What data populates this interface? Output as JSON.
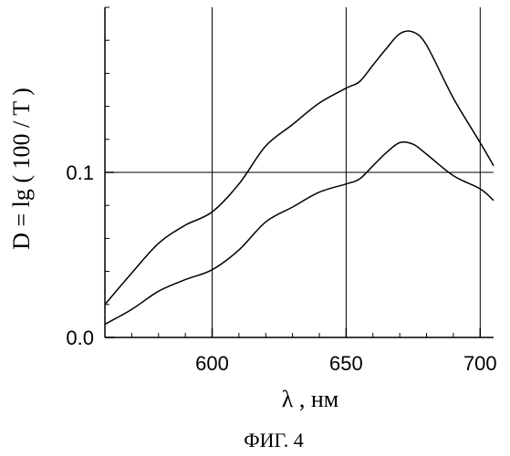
{
  "chart_data": {
    "type": "line",
    "xlabel": "λ , нм",
    "ylabel": "D = lg ( 100 / T )",
    "caption": "ФИГ. 4",
    "xlim": [
      560,
      705
    ],
    "ylim": [
      0,
      0.2
    ],
    "x_ticks": [
      {
        "value": 600,
        "label": "600"
      },
      {
        "value": 650,
        "label": "650"
      },
      {
        "value": 700,
        "label": "700"
      }
    ],
    "y_ticks": [
      {
        "value": 0.0,
        "label": "0.0"
      },
      {
        "value": 0.1,
        "label": "0.1"
      }
    ],
    "grid": true,
    "series": [
      {
        "color": "#000000",
        "x": [
          560,
          570,
          580,
          590,
          600,
          610,
          620,
          630,
          640,
          650,
          655,
          660,
          665,
          670,
          675,
          680,
          690,
          700,
          705
        ],
        "y": [
          0.02,
          0.039,
          0.057,
          0.068,
          0.076,
          0.093,
          0.116,
          0.129,
          0.142,
          0.151,
          0.155,
          0.165,
          0.175,
          0.184,
          0.185,
          0.177,
          0.145,
          0.118,
          0.104
        ]
      },
      {
        "color": "#000000",
        "x": [
          560,
          570,
          580,
          590,
          600,
          610,
          620,
          630,
          640,
          650,
          655,
          660,
          665,
          670,
          675,
          680,
          690,
          700,
          705
        ],
        "y": [
          0.008,
          0.017,
          0.028,
          0.035,
          0.041,
          0.053,
          0.07,
          0.079,
          0.088,
          0.093,
          0.096,
          0.104,
          0.112,
          0.118,
          0.117,
          0.111,
          0.098,
          0.09,
          0.083
        ]
      }
    ]
  }
}
